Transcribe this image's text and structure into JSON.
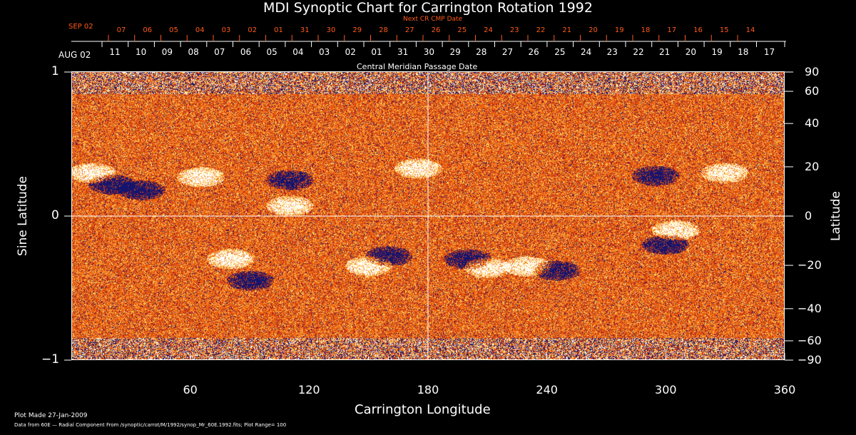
{
  "chart_data": {
    "type": "heatmap",
    "title": "MDI Synoptic Chart for Carrington Rotation 1992",
    "xlabel": "Carrington Longitude",
    "ylabel_left": "Sine Latitude",
    "ylabel_right": "Latitude",
    "xlim": [
      0,
      360
    ],
    "ylim": [
      -1,
      1
    ],
    "x_ticks": [
      "60",
      "120",
      "180",
      "240",
      "300",
      "360"
    ],
    "y_ticks_left": [
      "1",
      "0",
      "−1"
    ],
    "y_ticks_right": [
      "90",
      "60",
      "40",
      "20",
      "0",
      "−20",
      "−40",
      "−60",
      "−90"
    ],
    "y_ticks_right_values": [
      90,
      60,
      40,
      20,
      0,
      -20,
      -40,
      -60,
      -90
    ],
    "top_axis_label": "Central Meridian Passage Date",
    "top_axis_start": "AUG 02",
    "top_axis_dates": [
      "11",
      "10",
      "09",
      "08",
      "07",
      "06",
      "05",
      "04",
      "03",
      "02",
      "01",
      "31",
      "30",
      "29",
      "28",
      "27",
      "26",
      "25",
      "24",
      "23",
      "22",
      "21",
      "20",
      "19",
      "18",
      "17"
    ],
    "next_axis_label": "Next CR CMP Date",
    "next_axis_start": "SEP 02",
    "next_axis_dates": [
      "07",
      "06",
      "05",
      "04",
      "03",
      "02",
      "01",
      "31",
      "30",
      "29",
      "28",
      "27",
      "26",
      "25",
      "24",
      "23",
      "22",
      "21",
      "20",
      "19",
      "18",
      "17",
      "16",
      "15",
      "14"
    ],
    "plot_range": 100,
    "colors": {
      "background": "#e84a10",
      "positive": "#ffffff",
      "negative": "#10106a",
      "axis": "#ffffff",
      "next_axis": "#ff5a1a"
    }
  },
  "footer": {
    "plot_made": "Plot Made 27-Jan-2009",
    "data_source": "Data from 60E — Radial Component From /synoptic/carrot/M/1992/synop_Mr_60E.1992.fits; Plot Range=   100"
  }
}
